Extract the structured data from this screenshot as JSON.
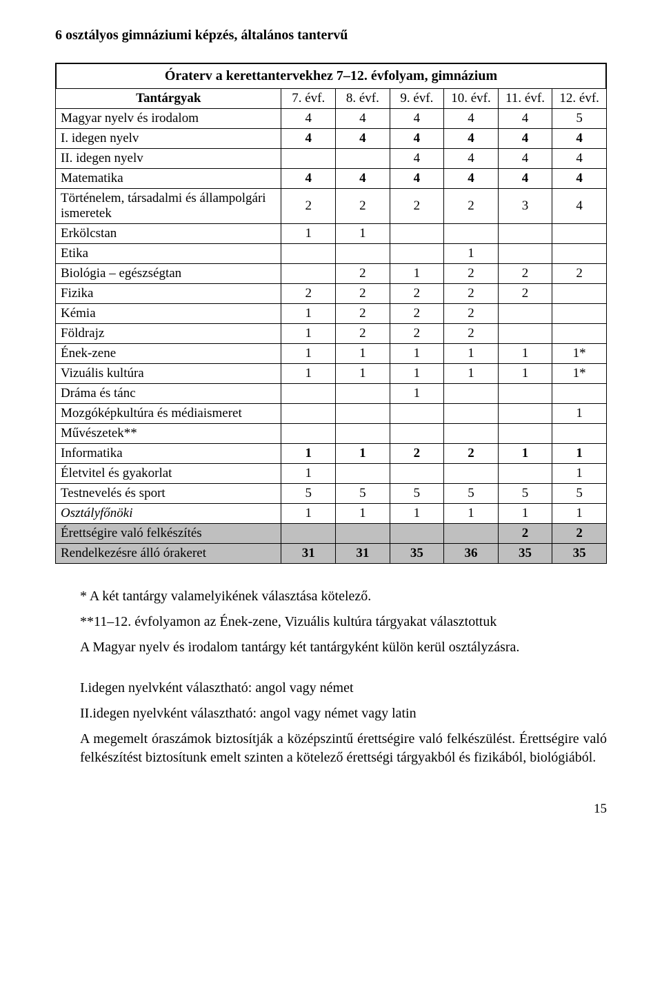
{
  "section_title": "6 osztályos gimnáziumi képzés, általános tantervű",
  "table_title": "Óraterv a kerettantervekhez 7–12. évfolyam, gimnázium",
  "header": {
    "subjects": "Tantárgyak",
    "cols": [
      "7. évf.",
      "8. évf.",
      "9. évf.",
      "10. évf.",
      "11. évf.",
      "12. évf."
    ]
  },
  "rows": [
    {
      "label": "Magyar nyelv és irodalom",
      "vals": [
        "4",
        "4",
        "4",
        "4",
        "4",
        "5"
      ],
      "bold": false
    },
    {
      "label": "I. idegen nyelv",
      "vals": [
        "4",
        "4",
        "4",
        "4",
        "4",
        "4"
      ],
      "bold": true
    },
    {
      "label": "II. idegen nyelv",
      "vals": [
        "",
        "",
        "4",
        "4",
        "4",
        "4"
      ],
      "bold": false
    },
    {
      "label": "Matematika",
      "vals": [
        "4",
        "4",
        "4",
        "4",
        "4",
        "4"
      ],
      "bold": true
    },
    {
      "label": "Történelem, társadalmi és állampolgári ismeretek",
      "vals": [
        "2",
        "2",
        "2",
        "2",
        "3",
        "4"
      ],
      "bold": false
    },
    {
      "label": "Erkölcstan",
      "vals": [
        "1",
        "1",
        "",
        "",
        "",
        ""
      ],
      "bold": false
    },
    {
      "label": "Etika",
      "vals": [
        "",
        "",
        "",
        "1",
        "",
        ""
      ],
      "bold": false
    },
    {
      "label": "Biológia – egészségtan",
      "vals": [
        "",
        "2",
        "1",
        "2",
        "2",
        "2"
      ],
      "bold": false
    },
    {
      "label": "Fizika",
      "vals": [
        "2",
        "2",
        "2",
        "2",
        "2",
        ""
      ],
      "bold": false
    },
    {
      "label": "Kémia",
      "vals": [
        "1",
        "2",
        "2",
        "2",
        "",
        ""
      ],
      "bold": false
    },
    {
      "label": "Földrajz",
      "vals": [
        "1",
        "2",
        "2",
        "2",
        "",
        ""
      ],
      "bold": false
    },
    {
      "label": "Ének-zene",
      "vals": [
        "1",
        "1",
        "1",
        "1",
        "1",
        "1*"
      ],
      "bold": false
    },
    {
      "label": "Vizuális kultúra",
      "vals": [
        "1",
        "1",
        "1",
        "1",
        "1",
        "1*"
      ],
      "bold": false
    },
    {
      "label": "Dráma és tánc",
      "vals": [
        "",
        "",
        "1",
        "",
        "",
        ""
      ],
      "bold": false
    },
    {
      "label": "Mozgóképkultúra és médiaismeret",
      "vals": [
        "",
        "",
        "",
        "",
        "",
        "1"
      ],
      "bold": false
    },
    {
      "label": "Művészetek**",
      "vals": [
        "",
        "",
        "",
        "",
        "",
        ""
      ],
      "bold": false
    },
    {
      "label": "Informatika",
      "vals": [
        "1",
        "1",
        "2",
        "2",
        "1",
        "1"
      ],
      "bold": true
    },
    {
      "label": "Életvitel és gyakorlat",
      "vals": [
        "1",
        "",
        "",
        "",
        "",
        "1"
      ],
      "bold": false
    },
    {
      "label": "Testnevelés és sport",
      "vals": [
        "5",
        "5",
        "5",
        "5",
        "5",
        "5"
      ],
      "bold": false
    },
    {
      "label": "Osztályfőnöki",
      "vals": [
        "1",
        "1",
        "1",
        "1",
        "1",
        "1"
      ],
      "italic": true,
      "bold": false
    },
    {
      "label": "Érettségire való felkészítés",
      "vals": [
        "",
        "",
        "",
        "",
        "2",
        "2"
      ],
      "shaded": true,
      "bold": true
    },
    {
      "label": "Rendelkezésre álló órakeret",
      "vals": [
        "31",
        "31",
        "35",
        "36",
        "35",
        "35"
      ],
      "shaded": true,
      "bold": true
    }
  ],
  "notes": [
    "* A két tantárgy valamelyikének választása kötelező.",
    "**11–12. évfolyamon az Ének-zene, Vizuális kultúra tárgyakat választottuk",
    "A Magyar nyelv és irodalom tantárgy két tantárgyként külön kerül osztályzásra.",
    "I.idegen nyelvként választható: angol vagy német",
    "II.idegen nyelvként választható: angol vagy német vagy latin",
    "A megemelt óraszámok biztosítják a középszintű érettségire való felkészülést. Érettségire való felkészítést biztosítunk emelt szinten a kötelező érettségi tárgyakból és fizikából, biológiából."
  ],
  "page_number": "15"
}
